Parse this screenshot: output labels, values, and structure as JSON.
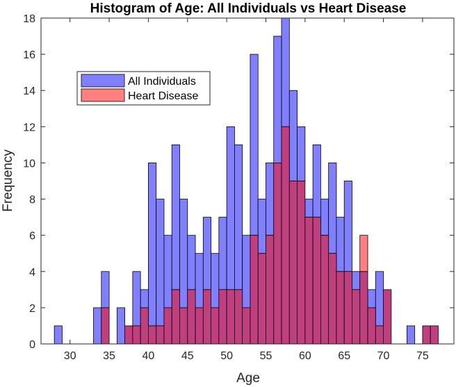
{
  "chart_data": {
    "type": "bar",
    "title": "Histogram of Age: All Individuals vs Heart Disease",
    "xlabel": "Age",
    "ylabel": "Frequency",
    "xlim": [
      26.3,
      79.0
    ],
    "ylim": [
      0,
      18
    ],
    "xticks": [
      30,
      35,
      40,
      45,
      50,
      55,
      60,
      65,
      70,
      75
    ],
    "yticks": [
      0,
      2,
      4,
      6,
      8,
      10,
      12,
      14,
      16,
      18
    ],
    "grid": false,
    "legend_position": "top-left",
    "bin_width": 1.0,
    "bin_start": 28.0,
    "bin_edges_x": [
      28,
      29,
      30,
      31,
      32,
      33,
      34,
      35,
      36,
      37,
      38,
      39,
      40,
      41,
      42,
      43,
      44,
      45,
      46,
      47,
      48,
      49,
      50,
      51,
      52,
      53,
      54,
      55,
      56,
      57,
      58,
      59,
      60,
      61,
      62,
      63,
      64,
      65,
      66,
      67,
      68,
      69,
      70,
      71,
      72,
      73,
      74,
      75,
      76,
      77
    ],
    "series": [
      {
        "name": "All Individuals",
        "color": "#8080ff",
        "values": [
          1,
          0,
          0,
          0,
          0,
          2,
          4,
          0,
          2,
          1,
          4,
          3,
          10,
          8,
          6,
          11,
          8,
          6,
          5,
          7,
          5,
          7,
          12,
          11,
          6,
          16,
          8,
          10,
          17,
          18,
          14,
          12,
          8,
          11,
          8,
          10,
          7,
          9,
          4,
          4,
          3,
          4,
          3,
          0,
          0,
          1,
          0,
          1,
          1
        ]
      },
      {
        "name": "Heart Disease",
        "color": "#ff8080",
        "values": [
          0,
          0,
          0,
          0,
          0,
          0,
          2,
          0,
          0,
          1,
          1,
          2,
          1,
          1,
          2,
          3,
          2,
          3,
          2,
          3,
          2,
          3,
          3,
          3,
          2,
          6,
          5,
          6,
          10,
          12,
          9,
          9,
          7,
          7,
          6,
          5,
          4,
          4,
          3,
          6,
          2,
          1,
          3,
          0,
          0,
          0,
          0,
          1,
          1
        ]
      }
    ],
    "overlap_color": "#bf3f7f"
  }
}
